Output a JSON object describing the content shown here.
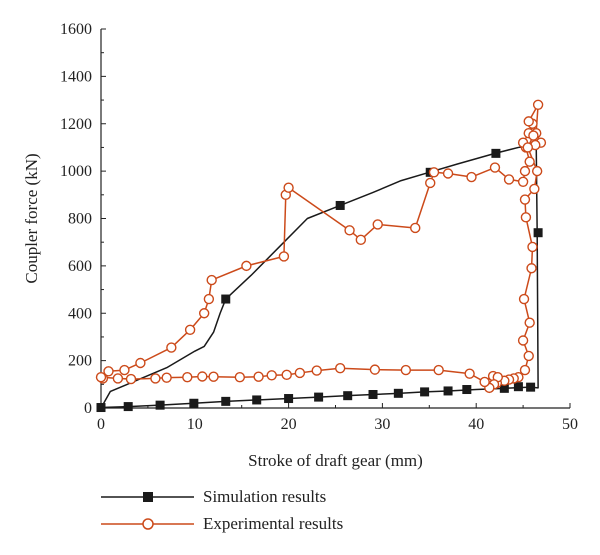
{
  "chart_data": {
    "type": "line",
    "xlabel": "Stroke of draft gear (mm)",
    "ylabel": "Coupler force (kN)",
    "xlim": [
      0,
      50
    ],
    "ylim": [
      0,
      1600
    ],
    "xticks": [
      0,
      10,
      20,
      30,
      40,
      50
    ],
    "yticks": [
      0,
      200,
      400,
      600,
      800,
      1000,
      1200,
      1400,
      1600
    ],
    "grid": false,
    "legend_position": "bottom",
    "series": [
      {
        "name": "Simulation results",
        "color": "#1a1a1a",
        "marker": "filled-square",
        "line": [
          [
            0,
            0
          ],
          [
            1,
            70
          ],
          [
            4,
            120
          ],
          [
            7,
            170
          ],
          [
            10,
            240
          ],
          [
            11,
            260
          ],
          [
            12,
            320
          ],
          [
            12.7,
            400
          ],
          [
            13.3,
            460
          ],
          [
            16,
            560
          ],
          [
            19,
            680
          ],
          [
            22,
            800
          ],
          [
            25.5,
            855
          ],
          [
            29,
            910
          ],
          [
            32,
            960
          ],
          [
            35,
            995
          ],
          [
            38,
            1030
          ],
          [
            42,
            1075
          ],
          [
            44.5,
            1100
          ],
          [
            46.4,
            1110
          ],
          [
            46.5,
            740
          ],
          [
            46.6,
            85
          ],
          [
            45.8,
            88
          ],
          [
            43,
            83
          ],
          [
            40,
            78
          ],
          [
            37,
            72
          ],
          [
            34.5,
            68
          ],
          [
            31.7,
            62
          ],
          [
            29,
            57
          ],
          [
            26.3,
            52
          ],
          [
            23.2,
            46
          ],
          [
            20,
            40
          ],
          [
            16.6,
            34
          ],
          [
            13.3,
            28
          ],
          [
            9.9,
            20
          ],
          [
            6.3,
            12
          ],
          [
            2.9,
            6
          ],
          [
            0,
            2
          ]
        ],
        "markers": [
          [
            13.3,
            460
          ],
          [
            25.5,
            855
          ],
          [
            35.1,
            995
          ],
          [
            42.1,
            1075
          ],
          [
            46.6,
            740
          ],
          [
            45.8,
            88
          ],
          [
            44.5,
            90
          ],
          [
            43,
            83
          ],
          [
            39,
            78
          ],
          [
            37,
            72
          ],
          [
            34.5,
            68
          ],
          [
            31.7,
            62
          ],
          [
            29,
            57
          ],
          [
            26.3,
            52
          ],
          [
            23.2,
            46
          ],
          [
            20,
            40
          ],
          [
            16.6,
            34
          ],
          [
            13.3,
            28
          ],
          [
            9.9,
            20
          ],
          [
            6.3,
            12
          ],
          [
            2.9,
            6
          ],
          [
            0,
            2
          ]
        ]
      },
      {
        "name": "Experimental results",
        "color": "#cc4a1a",
        "marker": "open-circle",
        "points": [
          [
            0.2,
            125
          ],
          [
            0.8,
            155
          ],
          [
            2.5,
            160
          ],
          [
            4.2,
            190
          ],
          [
            7.5,
            255
          ],
          [
            9.5,
            330
          ],
          [
            11,
            400
          ],
          [
            11.5,
            460
          ],
          [
            11.8,
            540
          ],
          [
            15.5,
            600
          ],
          [
            19.5,
            640
          ],
          [
            19.7,
            900
          ],
          [
            20,
            930
          ],
          [
            26.5,
            750
          ],
          [
            27.7,
            710
          ],
          [
            29.5,
            775
          ],
          [
            33.5,
            760
          ],
          [
            35.1,
            950
          ],
          [
            35.5,
            995
          ],
          [
            37,
            990
          ],
          [
            39.5,
            975
          ],
          [
            42,
            1015
          ],
          [
            43.5,
            965
          ],
          [
            45,
            955
          ],
          [
            45.2,
            1000
          ],
          [
            45.7,
            1040
          ],
          [
            45.3,
            1100
          ],
          [
            45,
            1120
          ],
          [
            45.6,
            1160
          ],
          [
            46,
            1200
          ],
          [
            46.4,
            1160
          ],
          [
            46.9,
            1120
          ],
          [
            46.3,
            1110
          ],
          [
            46.6,
            1280
          ],
          [
            45.6,
            1210
          ],
          [
            46.1,
            1150
          ],
          [
            45.5,
            1100
          ],
          [
            46.5,
            1000
          ],
          [
            46.2,
            925
          ],
          [
            45.2,
            880
          ],
          [
            45.3,
            805
          ],
          [
            46,
            680
          ],
          [
            45.9,
            590
          ],
          [
            45.1,
            460
          ],
          [
            45.7,
            360
          ],
          [
            45,
            285
          ],
          [
            45.6,
            220
          ],
          [
            45.2,
            160
          ],
          [
            44.5,
            130
          ],
          [
            44,
            125
          ],
          [
            43.5,
            120
          ],
          [
            43,
            115
          ],
          [
            42.2,
            105
          ],
          [
            41.8,
            120
          ],
          [
            41.8,
            135
          ],
          [
            42.3,
            130
          ],
          [
            41.9,
            100
          ],
          [
            41.4,
            85
          ],
          [
            40.9,
            110
          ],
          [
            39.3,
            145
          ],
          [
            36,
            160
          ],
          [
            32.5,
            160
          ],
          [
            29.2,
            162
          ],
          [
            25.5,
            168
          ],
          [
            23,
            158
          ],
          [
            21.2,
            148
          ],
          [
            19.8,
            140
          ],
          [
            18.2,
            138
          ],
          [
            16.8,
            132
          ],
          [
            14.8,
            130
          ],
          [
            12,
            132
          ],
          [
            10.8,
            133
          ],
          [
            9.2,
            130
          ],
          [
            7,
            128
          ],
          [
            5.8,
            125
          ],
          [
            3.2,
            122
          ],
          [
            1.8,
            125
          ],
          [
            0,
            130
          ]
        ]
      }
    ]
  }
}
